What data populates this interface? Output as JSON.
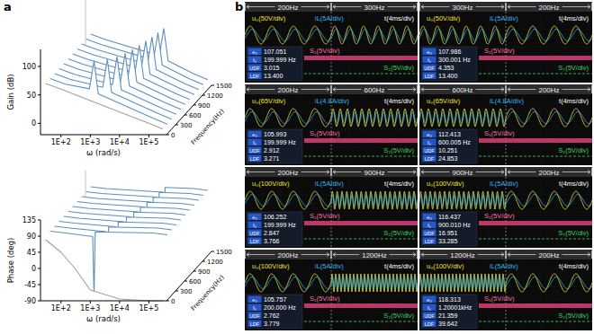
{
  "panel_letters": [
    "a",
    "b"
  ],
  "chart_data": [
    {
      "type": "line",
      "ylabel": "Gain (dB)",
      "xlabel": "ω (rad/s)",
      "zlabel": "Frequency(Hz)",
      "log": "x",
      "xlim": [
        20,
        400000
      ],
      "xticks": [
        {
          "value": 100,
          "label": "1E+2"
        },
        {
          "value": 1000,
          "label": "1E+3"
        },
        {
          "value": 10000,
          "label": "1E+4"
        },
        {
          "value": 100000,
          "label": "1E+5"
        }
      ],
      "ylim": [
        -20,
        130
      ],
      "yticks": [
        0,
        50,
        100
      ],
      "zlim": [
        0,
        1500
      ],
      "zticks": [
        0,
        300,
        600,
        900,
        1200,
        1500
      ],
      "series": [
        {
          "z": 0,
          "color": "#a0a0a0",
          "x": [
            30,
            100,
            1000,
            10000,
            100000,
            300000
          ],
          "values": [
            70,
            60,
            40,
            20,
            0,
            -10
          ]
        },
        {
          "z": 150,
          "color": "#5b8fc0",
          "x": [
            30,
            100,
            660,
            942,
            1319,
            100000,
            300000
          ],
          "values": [
            70,
            60,
            52,
            101,
            43,
            0,
            -10
          ]
        },
        {
          "z": 300,
          "color": "#5b8fc0",
          "x": [
            30,
            100,
            1320,
            1885,
            2639,
            100000,
            300000
          ],
          "values": [
            70,
            60,
            46,
            95,
            37,
            0,
            -10
          ]
        },
        {
          "z": 450,
          "color": "#5b8fc0",
          "x": [
            30,
            100,
            1979,
            2827,
            3958,
            100000,
            300000
          ],
          "values": [
            70,
            60,
            42,
            91,
            33,
            0,
            -10
          ]
        },
        {
          "z": 600,
          "color": "#5b8fc0",
          "x": [
            30,
            100,
            2639,
            3770,
            5278,
            100000,
            300000
          ],
          "values": [
            70,
            60,
            40,
            88,
            31,
            0,
            -10
          ]
        },
        {
          "z": 750,
          "color": "#5b8fc0",
          "x": [
            30,
            100,
            3299,
            4712,
            6597,
            100000,
            300000
          ],
          "values": [
            70,
            60,
            38,
            86,
            29,
            0,
            -10
          ]
        },
        {
          "z": 900,
          "color": "#5b8fc0",
          "x": [
            30,
            100,
            3958,
            5655,
            7917,
            100000,
            300000
          ],
          "values": [
            70,
            60,
            36,
            85,
            27,
            0,
            -10
          ]
        },
        {
          "z": 1050,
          "color": "#5b8fc0",
          "x": [
            30,
            100,
            4618,
            6597,
            9236,
            100000,
            300000
          ],
          "values": [
            70,
            60,
            35,
            84,
            26,
            0,
            -10
          ]
        },
        {
          "z": 1200,
          "color": "#5b8fc0",
          "x": [
            30,
            100,
            5278,
            7540,
            10556,
            100000,
            300000
          ],
          "values": [
            70,
            60,
            34,
            82,
            25,
            0,
            -10
          ]
        },
        {
          "z": 1350,
          "color": "#5b8fc0",
          "x": [
            30,
            100,
            5938,
            8482,
            11875,
            100000,
            300000
          ],
          "values": [
            70,
            60,
            33,
            81,
            24,
            0,
            -10
          ]
        },
        {
          "z": 1500,
          "color": "#5b8fc0",
          "x": [
            30,
            100,
            6597,
            9425,
            13195,
            100000,
            300000
          ],
          "values": [
            70,
            60,
            32,
            80,
            23,
            0,
            -10
          ]
        }
      ]
    },
    {
      "type": "line",
      "ylabel": "Phase (deg)",
      "xlabel": "ω (rad/s)",
      "zlabel": "Frequency(Hz)",
      "log": "x",
      "xlim": [
        20,
        400000
      ],
      "xticks": [
        {
          "value": 100,
          "label": "1E+2"
        },
        {
          "value": 1000,
          "label": "1E+3"
        },
        {
          "value": 10000,
          "label": "1E+4"
        },
        {
          "value": 100000,
          "label": "1E+5"
        }
      ],
      "ylim": [
        -90,
        135
      ],
      "yticks": [
        -90,
        -45,
        0,
        45,
        90,
        135
      ],
      "zlim": [
        0,
        1500
      ],
      "zticks": [
        0,
        300,
        600,
        900,
        1200,
        1500
      ],
      "series": [
        {
          "z": 0,
          "color": "#a0a0a0",
          "x": [
            30,
            100,
            300,
            1000,
            10000,
            100000,
            300000
          ],
          "values": [
            80,
            45,
            0,
            -60,
            -85,
            -90,
            -90
          ]
        },
        {
          "z": 150,
          "color": "#5b8fc0",
          "x": [
            30,
            100,
            848,
            942,
            1037,
            100000,
            300000
          ],
          "values": [
            90,
            85,
            75,
            -90,
            88,
            85,
            80
          ]
        },
        {
          "z": 300,
          "color": "#5b8fc0",
          "x": [
            30,
            100,
            1696,
            1885,
            2073,
            100000,
            300000
          ],
          "values": [
            90,
            85,
            75,
            -90,
            88,
            85,
            80
          ]
        },
        {
          "z": 450,
          "color": "#5b8fc0",
          "x": [
            30,
            100,
            2545,
            2827,
            3110,
            100000,
            300000
          ],
          "values": [
            90,
            85,
            75,
            -90,
            88,
            85,
            80
          ]
        },
        {
          "z": 600,
          "color": "#5b8fc0",
          "x": [
            30,
            100,
            3393,
            3770,
            4147,
            100000,
            300000
          ],
          "values": [
            90,
            85,
            75,
            -90,
            88,
            85,
            80
          ]
        },
        {
          "z": 750,
          "color": "#5b8fc0",
          "x": [
            30,
            100,
            4241,
            4712,
            5184,
            100000,
            300000
          ],
          "values": [
            90,
            85,
            75,
            -90,
            88,
            85,
            80
          ]
        },
        {
          "z": 900,
          "color": "#5b8fc0",
          "x": [
            30,
            100,
            5089,
            5655,
            6220,
            100000,
            300000
          ],
          "values": [
            90,
            85,
            75,
            -90,
            88,
            85,
            80
          ]
        },
        {
          "z": 1050,
          "color": "#5b8fc0",
          "x": [
            30,
            100,
            5938,
            6597,
            7257,
            100000,
            300000
          ],
          "values": [
            90,
            85,
            75,
            -90,
            88,
            85,
            80
          ]
        },
        {
          "z": 1200,
          "color": "#5b8fc0",
          "x": [
            30,
            100,
            6786,
            7540,
            8294,
            100000,
            300000
          ],
          "values": [
            90,
            85,
            75,
            -90,
            88,
            85,
            80
          ]
        },
        {
          "z": 1350,
          "color": "#5b8fc0",
          "x": [
            30,
            100,
            7634,
            8482,
            9331,
            100000,
            300000
          ],
          "values": [
            90,
            85,
            75,
            -90,
            88,
            85,
            80
          ]
        },
        {
          "z": 1500,
          "color": "#5b8fc0",
          "x": [
            30,
            100,
            8482,
            9425,
            10367,
            100000,
            300000
          ],
          "values": [
            90,
            85,
            75,
            -90,
            88,
            85,
            80
          ]
        }
      ]
    }
  ],
  "panel_b": {
    "screens": [
      {
        "segments": [
          {
            "label": "200Hz",
            "frequency": 200
          },
          {
            "label": "300Hz",
            "frequency": 300
          }
        ],
        "u0": "u₀(50V/div)",
        "iL": "iL(5A/div)",
        "t": "t(4ms/div)",
        "t_div_ms": 4,
        "s1": "S₁(5V/div)",
        "s2": "S₂(5V/div)",
        "readout": [
          {
            "label": "e₀",
            "value": "107.051"
          },
          {
            "label": "f₀",
            "value": "199.999 Hz"
          },
          {
            "label": "UDF",
            "value": "3.015"
          },
          {
            "label": "LDF",
            "value": "13.400"
          }
        ]
      },
      {
        "segments": [
          {
            "label": "300Hz",
            "frequency": 300
          },
          {
            "label": "200Hz",
            "frequency": 200
          }
        ],
        "u0": "u₀(50V/div)",
        "iL": "iL(5A/div)",
        "t": "t(4ms/div)",
        "t_div_ms": 4,
        "s1": "S₁(5V/div)",
        "s2": "S₂(5V/div)",
        "readout": [
          {
            "label": "e₀",
            "value": "107.986"
          },
          {
            "label": "f₀",
            "value": "300.001 Hz"
          },
          {
            "label": "UDF",
            "value": "4.353"
          },
          {
            "label": "LDF",
            "value": "13.400"
          }
        ]
      },
      {
        "segments": [
          {
            "label": "200Hz",
            "frequency": 200
          },
          {
            "label": "600Hz",
            "frequency": 600
          }
        ],
        "u0": "u₀(65V/div)",
        "iL": "iL(4.8A/div)",
        "t": "t(4ms/div)",
        "t_div_ms": 4,
        "s1": "S₁(5V/div)",
        "s2": "S₂(5V/div)",
        "readout": [
          {
            "label": "e₀",
            "value": "105.993"
          },
          {
            "label": "f₀",
            "value": "199.999 Hz"
          },
          {
            "label": "UDF",
            "value": "2.912"
          },
          {
            "label": "LDF",
            "value": "3.271"
          }
        ]
      },
      {
        "segments": [
          {
            "label": "600Hz",
            "frequency": 600
          },
          {
            "label": "200Hz",
            "frequency": 200
          }
        ],
        "u0": "u₀(65V/div)",
        "iL": "iL(4.8A/div)",
        "t": "t(4ms/div)",
        "t_div_ms": 4,
        "s1": "S₁(5V/div)",
        "s2": "S₂(5V/div)",
        "readout": [
          {
            "label": "e₀",
            "value": "112.413"
          },
          {
            "label": "f₀",
            "value": "600.005 Hz"
          },
          {
            "label": "UDF",
            "value": "10.251"
          },
          {
            "label": "LDF",
            "value": "24.853"
          }
        ]
      },
      {
        "segments": [
          {
            "label": "200Hz",
            "frequency": 200
          },
          {
            "label": "900Hz",
            "frequency": 900
          }
        ],
        "u0": "u₀(100V/div)",
        "iL": "iL(5A/div)",
        "t": "t(4ms/div)",
        "t_div_ms": 4,
        "s1": "S₁(5V/div)",
        "s2": "S₂(5V/div)",
        "readout": [
          {
            "label": "e₀",
            "value": "106.252"
          },
          {
            "label": "f₀",
            "value": "199.999 Hz"
          },
          {
            "label": "UDF",
            "value": "2.847"
          },
          {
            "label": "LDF",
            "value": "3.766"
          }
        ]
      },
      {
        "segments": [
          {
            "label": "900Hz",
            "frequency": 900
          },
          {
            "label": "200Hz",
            "frequency": 200
          }
        ],
        "u0": "u₀(100V/div)",
        "iL": "iL(5A/div)",
        "t": "t(4ms/div)",
        "t_div_ms": 4,
        "s1": "S₁(5V/div)",
        "s2": "S₂(5V/div)",
        "readout": [
          {
            "label": "e₀",
            "value": "116.437"
          },
          {
            "label": "f₀",
            "value": "900.010 Hz"
          },
          {
            "label": "UDF",
            "value": "16.951"
          },
          {
            "label": "LDF",
            "value": "33.285"
          }
        ]
      },
      {
        "segments": [
          {
            "label": "200Hz",
            "frequency": 200
          },
          {
            "label": "1200Hz",
            "frequency": 1200
          }
        ],
        "u0": "u₀(100V/div)",
        "iL": "iL(5A/div)",
        "t": "t(4ms/div)",
        "t_div_ms": 4,
        "s1": "S₁(5V/div)",
        "s2": "S₂(5V/div)",
        "readout": [
          {
            "label": "e₀",
            "value": "105.757"
          },
          {
            "label": "f₀",
            "value": "200.000 Hz"
          },
          {
            "label": "UDF",
            "value": "2.762"
          },
          {
            "label": "LDF",
            "value": "3.779"
          }
        ]
      },
      {
        "segments": [
          {
            "label": "1200Hz",
            "frequency": 1200
          },
          {
            "label": "200Hz",
            "frequency": 200
          }
        ],
        "u0": "u₀(100V/div)",
        "iL": "iL(5A/div)",
        "t": "t(4ms/div)",
        "t_div_ms": 4,
        "s1": "S₁(5V/div)",
        "s2": "S₂(5V/div)",
        "readout": [
          {
            "label": "e₀",
            "value": "118.313"
          },
          {
            "label": "f₀",
            "value": "1.20001kHz"
          },
          {
            "label": "UDF",
            "value": "21.359"
          },
          {
            "label": "LDF",
            "value": "39.642"
          }
        ]
      }
    ]
  }
}
